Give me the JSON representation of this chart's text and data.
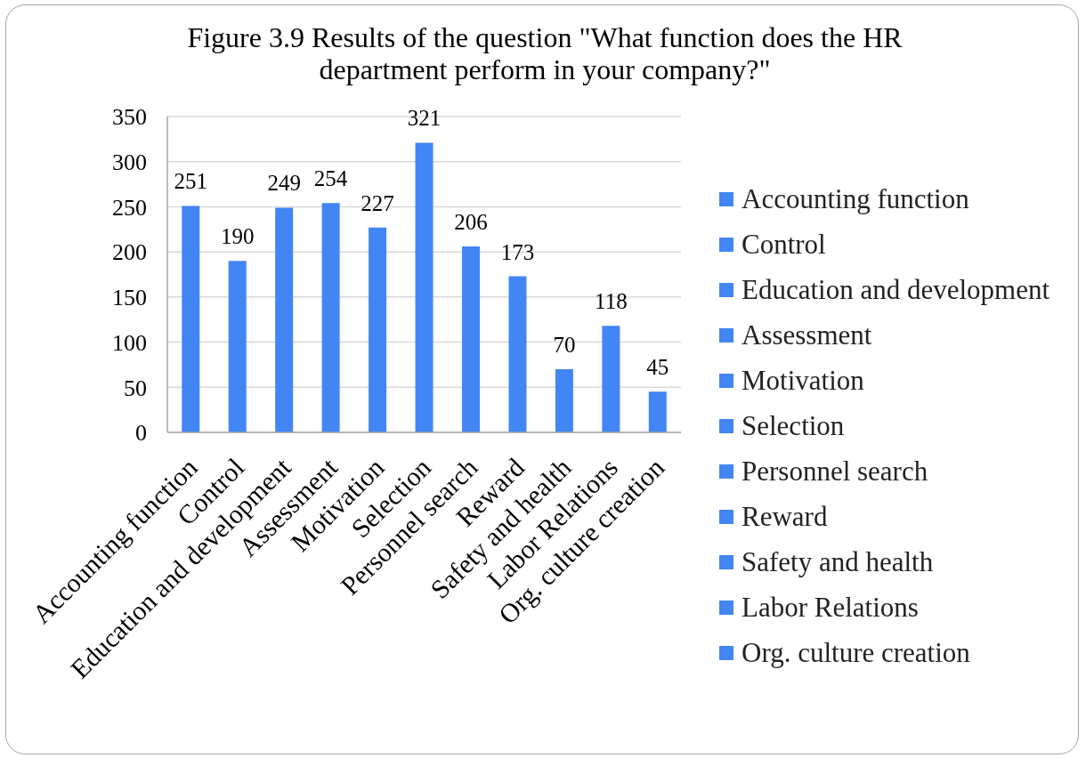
{
  "chart_data": {
    "type": "bar",
    "title": "Figure 3.9 Results of the question \"What function does the HR department perform in your company?\"",
    "categories": [
      "Accounting function",
      "Control",
      "Education and development",
      "Assessment",
      "Motivation",
      "Selection",
      "Personnel search",
      "Reward",
      "Safety and health",
      "Labor Relations",
      "Org. culture creation"
    ],
    "series": [
      {
        "name": "Accounting function",
        "color": "#4285f4",
        "values": [
          251,
          null,
          null,
          null,
          null,
          null,
          null,
          null,
          null,
          null,
          null
        ]
      },
      {
        "name": "Control",
        "color": "#4285f4",
        "values": [
          null,
          190,
          null,
          null,
          null,
          null,
          null,
          null,
          null,
          null,
          null
        ]
      },
      {
        "name": "Education and development",
        "color": "#4285f4",
        "values": [
          null,
          null,
          249,
          null,
          null,
          null,
          null,
          null,
          null,
          null,
          null
        ]
      },
      {
        "name": "Assessment",
        "color": "#4285f4",
        "values": [
          null,
          null,
          null,
          254,
          null,
          null,
          null,
          null,
          null,
          null,
          null
        ]
      },
      {
        "name": "Motivation",
        "color": "#4285f4",
        "values": [
          null,
          null,
          null,
          null,
          227,
          null,
          null,
          null,
          null,
          null,
          null
        ]
      },
      {
        "name": "Selection",
        "color": "#4285f4",
        "values": [
          null,
          null,
          null,
          null,
          null,
          321,
          null,
          null,
          null,
          null,
          null
        ]
      },
      {
        "name": "Personnel search",
        "color": "#4285f4",
        "values": [
          null,
          null,
          null,
          null,
          null,
          null,
          206,
          null,
          null,
          null,
          null
        ]
      },
      {
        "name": "Reward",
        "color": "#4285f4",
        "values": [
          null,
          null,
          null,
          null,
          null,
          null,
          null,
          173,
          null,
          null,
          null
        ]
      },
      {
        "name": "Safety and health",
        "color": "#4285f4",
        "values": [
          null,
          null,
          null,
          null,
          null,
          null,
          null,
          null,
          70,
          null,
          null
        ]
      },
      {
        "name": "Labor Relations",
        "color": "#4285f4",
        "values": [
          null,
          null,
          null,
          null,
          null,
          null,
          null,
          null,
          null,
          118,
          null
        ]
      },
      {
        "name": "Org. culture creation",
        "color": "#4285f4",
        "values": [
          null,
          null,
          null,
          null,
          null,
          null,
          null,
          null,
          null,
          null,
          45
        ]
      }
    ],
    "stacked": true,
    "ylim": [
      0,
      350
    ],
    "yticks": [
      0,
      50,
      100,
      150,
      200,
      250,
      300,
      350
    ],
    "grid": "y",
    "legend": "right",
    "data_labels": true
  }
}
